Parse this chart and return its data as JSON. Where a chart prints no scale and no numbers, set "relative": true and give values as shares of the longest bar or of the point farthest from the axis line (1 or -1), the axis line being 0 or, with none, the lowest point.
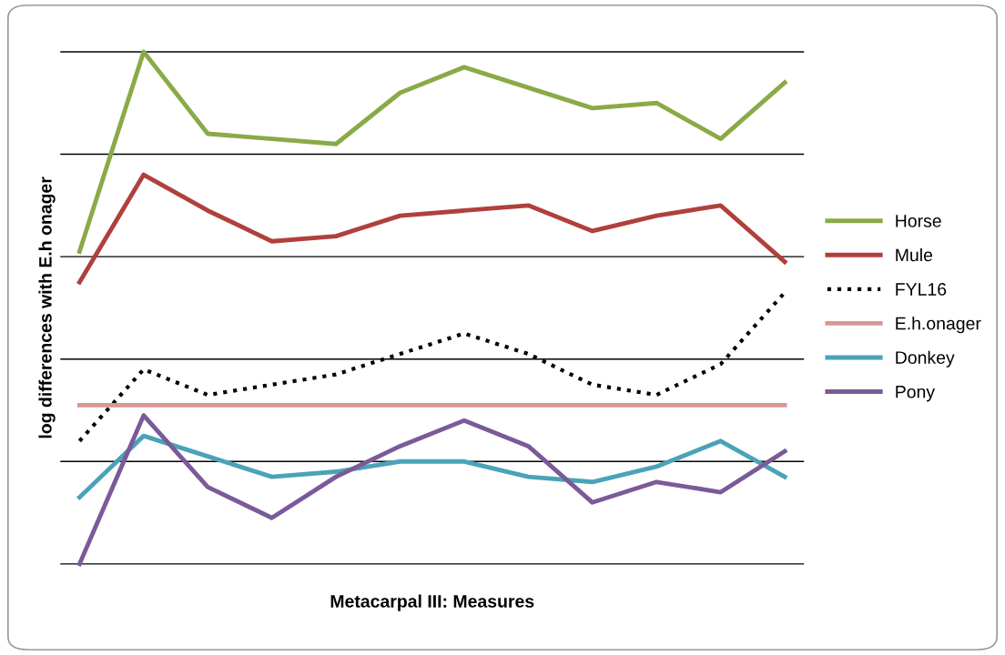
{
  "chart_data": {
    "type": "line",
    "relative": true,
    "xlabel": "Metacarpal III: Measures",
    "ylabel": "log differences with E.h onager",
    "categories": [
      null,
      null,
      null,
      null,
      null,
      null,
      null,
      null,
      null,
      null,
      null,
      null
    ],
    "grid": "y",
    "tick_labels": false,
    "legend": "right",
    "line_style": "solid",
    "marker": "none",
    "series": [
      {
        "name": "Horse",
        "color": "#8aaa48",
        "values": [
          0.61,
          1,
          0.84,
          0.83,
          0.82,
          0.92,
          0.97,
          0.93,
          0.89,
          0.9,
          0.83,
          0.94
        ]
      },
      {
        "name": "Mule",
        "color": "#b0403c",
        "values": [
          0.55,
          0.76,
          0.69,
          0.63,
          0.64,
          0.68,
          0.69,
          0.7,
          0.65,
          0.68,
          0.7,
          0.59
        ]
      },
      {
        "name": "FYL16",
        "color": "#000000",
        "line_style": "dotted",
        "values": [
          0.24,
          0.38,
          0.33,
          0.35,
          0.37,
          0.41,
          0.45,
          0.41,
          0.35,
          0.33,
          0.39,
          0.53
        ]
      },
      {
        "name": "E.h.onager",
        "color": "#d99694",
        "values": [
          0.31,
          0.31,
          0.31,
          0.31,
          0.31,
          0.31,
          0.31,
          0.31,
          0.31,
          0.31,
          0.31,
          0.31
        ]
      },
      {
        "name": "Donkey",
        "color": "#4aa3b8",
        "values": [
          0.13,
          0.25,
          0.21,
          0.17,
          0.18,
          0.2,
          0.2,
          0.17,
          0.16,
          0.19,
          0.24,
          0.17
        ]
      },
      {
        "name": "Pony",
        "color": "#7a5a98",
        "values": [
          0,
          0.29,
          0.15,
          0.09,
          0.17,
          0.23,
          0.28,
          0.23,
          0.12,
          0.16,
          0.14,
          0.22
        ]
      }
    ]
  }
}
